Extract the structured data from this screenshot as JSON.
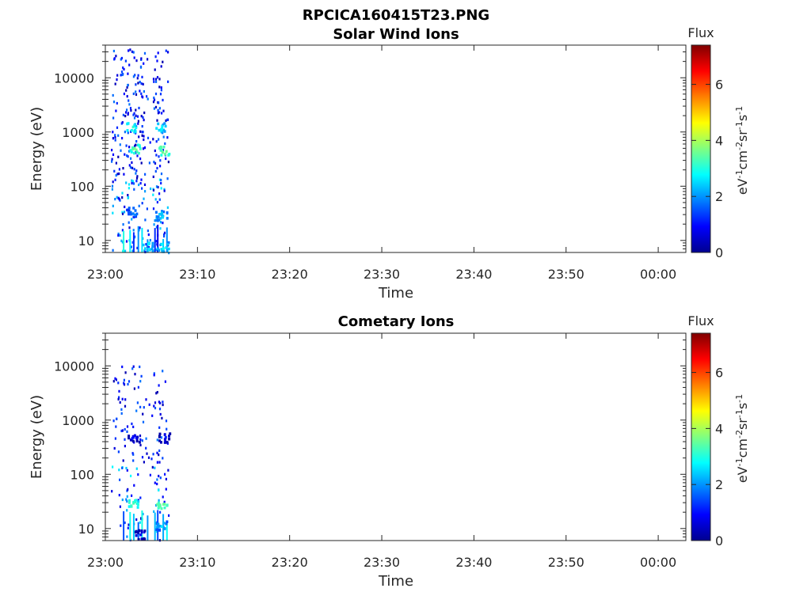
{
  "figure_title": "RPCICA160415T23.PNG",
  "chart_data": [
    {
      "type": "heatmap",
      "title": "Solar Wind Ions",
      "xlabel": "Time",
      "ylabel": "Energy (eV)",
      "y_scale": "log",
      "ylim": [
        6,
        40000
      ],
      "y_ticks": [
        {
          "value": 10,
          "label": "10"
        },
        {
          "value": 100,
          "label": "100"
        },
        {
          "value": 1000,
          "label": "1000"
        },
        {
          "value": 10000,
          "label": "10000"
        }
      ],
      "xlim": [
        "23:00",
        "00:03"
      ],
      "x_ticks": [
        "23:00",
        "23:10",
        "23:20",
        "23:30",
        "23:40",
        "23:50",
        "00:00"
      ],
      "colorbar": {
        "label": "Flux",
        "unit": "eV-1cm-2sr-1s-1",
        "range": [
          0,
          7.4
        ],
        "ticks": [
          "0",
          "2",
          "4",
          "6"
        ],
        "colormap": "jet"
      },
      "clusters": [
        {
          "time": "23:02:45",
          "energy": 1250,
          "flux": 3.3
        },
        {
          "time": "23:03:10",
          "energy": 500,
          "flux": 3.8
        },
        {
          "time": "23:05:50",
          "energy": 1250,
          "flux": 3.0
        },
        {
          "time": "23:06:20",
          "energy": 480,
          "flux": 4.0
        },
        {
          "time": "23:02:50",
          "energy": 35,
          "flux": 2.2
        },
        {
          "time": "23:06:00",
          "energy": 30,
          "flux": 2.6
        },
        {
          "time": "23:04:30",
          "energy": 8,
          "flux": 3.0
        },
        {
          "time": "23:06:10",
          "energy": 8,
          "flux": 3.0
        }
      ]
    },
    {
      "type": "heatmap",
      "title": "Cometary Ions",
      "xlabel": "Time",
      "ylabel": "Energy (eV)",
      "y_scale": "log",
      "ylim": [
        6,
        40000
      ],
      "y_ticks": [
        {
          "value": 10,
          "label": "10"
        },
        {
          "value": 100,
          "label": "100"
        },
        {
          "value": 1000,
          "label": "1000"
        },
        {
          "value": 10000,
          "label": "10000"
        }
      ],
      "xlim": [
        "23:00",
        "00:03"
      ],
      "x_ticks": [
        "23:00",
        "23:10",
        "23:20",
        "23:30",
        "23:40",
        "23:50",
        "00:00"
      ],
      "colorbar": {
        "label": "Flux",
        "unit": "eV-1cm-2sr-1s-1",
        "range": [
          0,
          7.4
        ],
        "ticks": [
          "0",
          "2",
          "4",
          "6"
        ],
        "colormap": "jet"
      },
      "clusters": [
        {
          "time": "23:02:55",
          "energy": 30,
          "flux": 3.5
        },
        {
          "time": "23:06:00",
          "energy": 30,
          "flux": 4.0
        },
        {
          "time": "23:06:20",
          "energy": 500,
          "flux": 1.2
        },
        {
          "time": "23:03:00",
          "energy": 500,
          "flux": 1.0
        },
        {
          "time": "23:03:40",
          "energy": 8,
          "flux": 1.0
        },
        {
          "time": "23:06:00",
          "energy": 12,
          "flux": 2.5
        }
      ]
    }
  ]
}
